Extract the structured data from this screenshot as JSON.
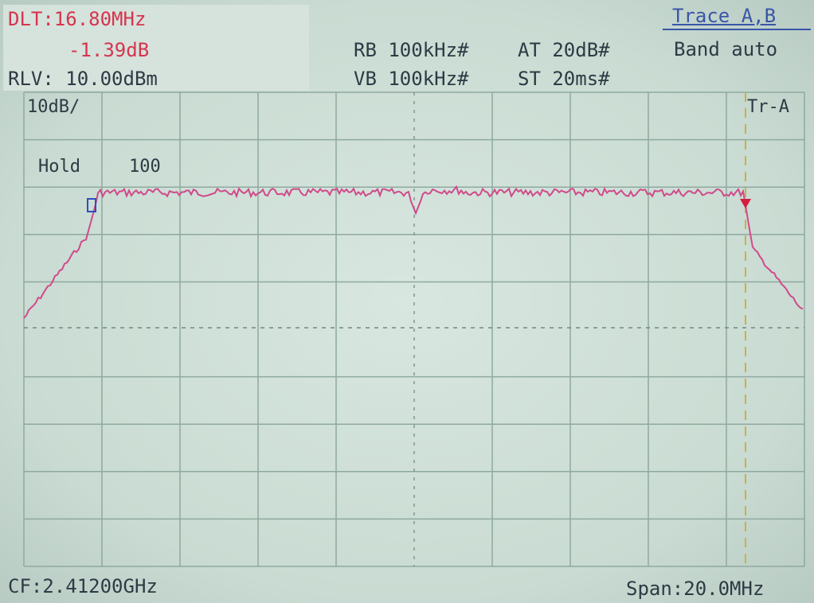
{
  "header": {
    "delta_freq": "DLT:16.80MHz",
    "delta_level": "-1.39dB",
    "ref_level": "RLV: 10.00dBm",
    "rbw": "RB 100kHz#",
    "atten": "AT 20dB#",
    "vbw": "VB 100kHz#",
    "sweep": "ST 20ms#"
  },
  "menu": {
    "trace": "Trace A,B",
    "band": "Band auto"
  },
  "plot": {
    "scale": "10dB/",
    "hold_label": "Hold",
    "hold_value": "100",
    "trace_label": "Tr-A"
  },
  "footer": {
    "center_freq": "CF:2.41200GHz",
    "span": "Span:20.0MHz"
  },
  "colors": {
    "trace": "#d04a8a",
    "grid": "#8fa9a0",
    "marker": "#d61c40",
    "delta_marker": "#2d4fc0",
    "marker_line": "#c9b244"
  }
}
